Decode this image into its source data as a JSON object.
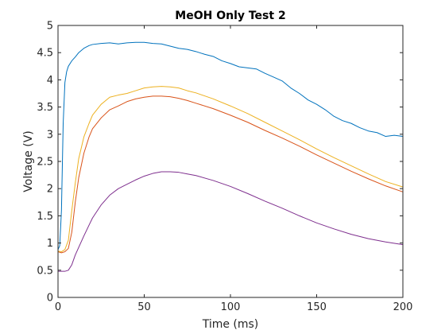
{
  "chart_data": {
    "type": "line",
    "title": "MeOH Only Test 2",
    "xlabel": "Time (ms)",
    "ylabel": "Voltage (V)",
    "xlim": [
      0,
      200
    ],
    "ylim": [
      0,
      5
    ],
    "xticks": [
      0,
      50,
      100,
      150,
      200
    ],
    "yticks": [
      0,
      0.5,
      1,
      1.5,
      2,
      2.5,
      3,
      3.5,
      4,
      4.5,
      5
    ],
    "xtick_labels": [
      "0",
      "50",
      "100",
      "150",
      "200"
    ],
    "ytick_labels": [
      "0",
      "0.5",
      "1",
      "1.5",
      "2",
      "2.5",
      "3",
      "3.5",
      "4",
      "4.5",
      "5"
    ],
    "grid": false,
    "series": [
      {
        "color": "#0072BD",
        "x": [
          0,
          1,
          2,
          3,
          4,
          5,
          6,
          8,
          10,
          12,
          15,
          18,
          20,
          25,
          30,
          35,
          40,
          45,
          50,
          55,
          60,
          65,
          70,
          75,
          80,
          85,
          90,
          95,
          100,
          105,
          110,
          115,
          120,
          125,
          130,
          135,
          140,
          145,
          150,
          155,
          160,
          165,
          170,
          175,
          180,
          185,
          190,
          195,
          200
        ],
        "y": [
          0.88,
          0.95,
          1.6,
          3.2,
          3.95,
          4.15,
          4.25,
          4.35,
          4.42,
          4.5,
          4.58,
          4.63,
          4.65,
          4.67,
          4.68,
          4.66,
          4.68,
          4.69,
          4.69,
          4.67,
          4.66,
          4.62,
          4.58,
          4.56,
          4.52,
          4.47,
          4.43,
          4.35,
          4.3,
          4.24,
          4.22,
          4.2,
          4.12,
          4.05,
          3.98,
          3.85,
          3.75,
          3.63,
          3.55,
          3.45,
          3.33,
          3.25,
          3.2,
          3.12,
          3.06,
          3.03,
          2.96,
          2.98,
          2.96
        ]
      },
      {
        "color": "#D95319",
        "x": [
          0,
          2,
          4,
          6,
          8,
          10,
          12,
          15,
          18,
          20,
          25,
          30,
          35,
          40,
          45,
          50,
          55,
          60,
          65,
          70,
          75,
          80,
          90,
          100,
          110,
          120,
          130,
          140,
          150,
          160,
          170,
          180,
          190,
          200
        ],
        "y": [
          0.84,
          0.82,
          0.84,
          0.9,
          1.2,
          1.75,
          2.2,
          2.65,
          2.95,
          3.1,
          3.3,
          3.45,
          3.52,
          3.6,
          3.65,
          3.68,
          3.7,
          3.7,
          3.69,
          3.66,
          3.62,
          3.57,
          3.47,
          3.35,
          3.22,
          3.07,
          2.93,
          2.78,
          2.62,
          2.47,
          2.32,
          2.18,
          2.05,
          1.94
        ]
      },
      {
        "color": "#EDB120",
        "x": [
          0,
          2,
          4,
          6,
          8,
          10,
          12,
          15,
          18,
          20,
          25,
          30,
          35,
          40,
          45,
          50,
          55,
          60,
          65,
          70,
          75,
          80,
          90,
          100,
          110,
          120,
          130,
          140,
          150,
          160,
          170,
          180,
          190,
          200
        ],
        "y": [
          0.85,
          0.84,
          0.88,
          1.05,
          1.6,
          2.1,
          2.55,
          2.95,
          3.2,
          3.35,
          3.55,
          3.68,
          3.72,
          3.75,
          3.8,
          3.85,
          3.87,
          3.88,
          3.87,
          3.85,
          3.8,
          3.76,
          3.65,
          3.52,
          3.38,
          3.22,
          3.06,
          2.9,
          2.73,
          2.57,
          2.42,
          2.27,
          2.13,
          2.03
        ]
      },
      {
        "color": "#7E2F8E",
        "x": [
          0,
          2,
          4,
          6,
          8,
          10,
          12,
          15,
          18,
          20,
          25,
          30,
          35,
          40,
          45,
          50,
          55,
          60,
          65,
          70,
          75,
          80,
          90,
          100,
          110,
          120,
          130,
          140,
          150,
          160,
          170,
          180,
          190,
          200
        ],
        "y": [
          0.48,
          0.48,
          0.48,
          0.5,
          0.6,
          0.78,
          0.92,
          1.13,
          1.33,
          1.46,
          1.7,
          1.88,
          2.0,
          2.08,
          2.16,
          2.23,
          2.28,
          2.31,
          2.31,
          2.3,
          2.27,
          2.24,
          2.15,
          2.04,
          1.91,
          1.77,
          1.64,
          1.5,
          1.37,
          1.26,
          1.16,
          1.08,
          1.02,
          0.97
        ]
      }
    ]
  }
}
